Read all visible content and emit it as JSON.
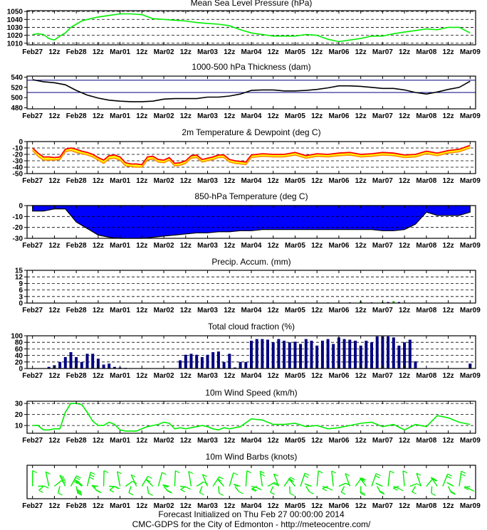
{
  "footer": {
    "line1": "Forecast Initialized on Thu Feb 27 00:00:00 2014",
    "line2": "CMC-GDPS for the City of Edmonton - http://meteocentre.com/"
  },
  "x_axis": {
    "labels": [
      "Feb27",
      "12z",
      "Feb28",
      "12z",
      "Mar01",
      "12z",
      "Mar02",
      "12z",
      "Mar03",
      "12z",
      "Mar04",
      "12z",
      "Mar05",
      "12z",
      "Mar06",
      "12z",
      "Mar07",
      "12z",
      "Mar08",
      "12z",
      "Mar09"
    ],
    "hours": [
      0,
      12,
      24,
      36,
      48,
      60,
      72,
      84,
      96,
      108,
      120,
      132,
      144,
      156,
      168,
      180,
      192,
      204,
      216,
      228,
      240
    ],
    "range_hours": [
      -3,
      243
    ]
  },
  "colors": {
    "green": "#00ee00",
    "black": "#000000",
    "navy": "#000080",
    "blue": "#0000ff",
    "red": "#ff0000",
    "yellow": "#ffff00",
    "orange": "#ff8c00"
  },
  "chart_data": [
    {
      "id": "mslp",
      "type": "line",
      "title": "Mean Sea Level Pressure (hPa)",
      "yticks": [
        1010,
        1020,
        1030,
        1040,
        1050
      ],
      "ylim": [
        1008,
        1051
      ],
      "grid": "dashed",
      "series": [
        {
          "color": "#00ee00",
          "x": [
            0,
            3,
            6,
            9,
            12,
            15,
            18,
            21,
            24,
            27,
            30,
            36,
            42,
            48,
            54,
            60,
            66,
            72,
            78,
            84,
            90,
            96,
            102,
            108,
            114,
            120,
            126,
            132,
            138,
            144,
            150,
            156,
            162,
            168,
            174,
            180,
            186,
            192,
            198,
            204,
            210,
            216,
            222,
            228,
            234,
            240
          ],
          "y": [
            1021,
            1022,
            1021,
            1016,
            1014,
            1019,
            1023,
            1030,
            1034,
            1038,
            1040,
            1043,
            1045,
            1047,
            1047,
            1046,
            1041,
            1040,
            1039,
            1038,
            1036,
            1035,
            1034,
            1032,
            1027,
            1023,
            1021,
            1019,
            1019,
            1019,
            1021,
            1020,
            1015,
            1012,
            1014,
            1016,
            1019,
            1019,
            1022,
            1024,
            1026,
            1028,
            1027,
            1030,
            1030,
            1023
          ]
        }
      ]
    },
    {
      "id": "thickness",
      "type": "line",
      "title": "1000-500 hPa Thickness (dam)",
      "yticks": [
        480,
        500,
        520,
        540
      ],
      "ylim": [
        478,
        542
      ],
      "hlines": [
        534,
        510
      ],
      "series": [
        {
          "color": "#000000",
          "x": [
            0,
            6,
            12,
            18,
            24,
            30,
            36,
            42,
            48,
            54,
            60,
            66,
            72,
            78,
            84,
            90,
            96,
            102,
            108,
            114,
            120,
            126,
            132,
            138,
            144,
            150,
            156,
            162,
            168,
            174,
            180,
            186,
            192,
            198,
            204,
            210,
            216,
            222,
            228,
            234,
            240
          ],
          "y": [
            535,
            531,
            529,
            525,
            514,
            505,
            499,
            495,
            493,
            492,
            492,
            493,
            497,
            498,
            498,
            498,
            501,
            501,
            503,
            507,
            514,
            515,
            515,
            513,
            513,
            514,
            516,
            519,
            523,
            523,
            522,
            520,
            518,
            518,
            515,
            510,
            507,
            511,
            516,
            520,
            532
          ]
        }
      ]
    },
    {
      "id": "temp",
      "type": "area",
      "title": "2m Temperature & Dewpoint (deg C)",
      "yticks": [
        -50,
        -40,
        -30,
        -20,
        -10,
        0
      ],
      "ylim": [
        -50,
        0
      ],
      "grid": "dashed",
      "x": [
        0,
        3,
        6,
        9,
        12,
        15,
        18,
        21,
        24,
        27,
        30,
        33,
        36,
        39,
        42,
        45,
        48,
        51,
        54,
        57,
        60,
        63,
        66,
        69,
        72,
        75,
        78,
        81,
        84,
        87,
        90,
        93,
        96,
        99,
        102,
        105,
        108,
        111,
        114,
        117,
        120,
        126,
        132,
        138,
        144,
        150,
        156,
        162,
        168,
        174,
        180,
        186,
        192,
        198,
        204,
        210,
        216,
        222,
        228,
        234,
        240
      ],
      "temperature": [
        -10,
        -18,
        -24,
        -24,
        -25,
        -24,
        -12,
        -10,
        -12,
        -15,
        -17,
        -20,
        -25,
        -29,
        -22,
        -21,
        -24,
        -33,
        -35,
        -35,
        -36,
        -24,
        -23,
        -28,
        -29,
        -25,
        -34,
        -33,
        -30,
        -22,
        -21,
        -28,
        -26,
        -24,
        -21,
        -21,
        -28,
        -30,
        -31,
        -32,
        -21,
        -19,
        -20,
        -20,
        -17,
        -22,
        -19,
        -20,
        -18,
        -17,
        -20,
        -19,
        -17,
        -18,
        -21,
        -20,
        -15,
        -18,
        -14,
        -12,
        -6
      ],
      "dewpoint": [
        -14,
        -23,
        -29,
        -29,
        -29,
        -28,
        -16,
        -14,
        -17,
        -19,
        -21,
        -24,
        -29,
        -34,
        -27,
        -26,
        -29,
        -38,
        -39,
        -40,
        -40,
        -29,
        -27,
        -32,
        -33,
        -29,
        -38,
        -37,
        -34,
        -26,
        -25,
        -32,
        -30,
        -28,
        -25,
        -25,
        -32,
        -34,
        -35,
        -36,
        -25,
        -23,
        -24,
        -24,
        -21,
        -26,
        -23,
        -24,
        -22,
        -21,
        -24,
        -23,
        -21,
        -22,
        -25,
        -24,
        -19,
        -22,
        -18,
        -16,
        -10
      ]
    },
    {
      "id": "t850",
      "type": "area",
      "title": "850-hPa Temperature (deg C)",
      "yticks": [
        -30,
        -20,
        -10,
        0
      ],
      "ylim": [
        -30,
        0
      ],
      "grid": "dashed",
      "fill": "#0000ff",
      "series": [
        {
          "x": [
            0,
            6,
            12,
            18,
            24,
            30,
            36,
            42,
            48,
            54,
            60,
            66,
            72,
            78,
            84,
            90,
            96,
            102,
            108,
            114,
            120,
            126,
            132,
            138,
            144,
            150,
            156,
            162,
            168,
            174,
            180,
            186,
            192,
            198,
            204,
            210,
            216,
            222,
            228,
            234,
            240
          ],
          "y": [
            -5,
            -5,
            -3,
            -3,
            -15,
            -21,
            -27,
            -29,
            -30,
            -30,
            -30,
            -29,
            -28,
            -27,
            -26,
            -25,
            -25,
            -24,
            -24,
            -23,
            -23,
            -22,
            -22,
            -22,
            -22,
            -22,
            -22,
            -22,
            -22,
            -22,
            -22,
            -22,
            -23,
            -23,
            -22,
            -17,
            -6,
            -9,
            -9,
            -9,
            -6
          ]
        }
      ]
    },
    {
      "id": "precip",
      "type": "bar",
      "title": "Precip. Accum. (mm)",
      "yticks": [
        0,
        3,
        6,
        9,
        12,
        15
      ],
      "ylim": [
        0,
        15
      ],
      "grid": "dashed",
      "colors": [
        "#000080",
        "#00aa00"
      ],
      "x": [
        126,
        132,
        150,
        162,
        174,
        180,
        186,
        192,
        195,
        198,
        201,
        204
      ],
      "values": [
        0.2,
        0.2,
        0.2,
        0.3,
        0.3,
        0.8,
        0.3,
        0.5,
        0.5,
        0.8,
        0.5,
        0.2
      ]
    },
    {
      "id": "cloud",
      "type": "bar",
      "title": "Total cloud fraction (%)",
      "yticks": [
        0,
        20,
        40,
        60,
        80,
        100
      ],
      "ylim": [
        0,
        100
      ],
      "grid": "dashed",
      "color": "#000080",
      "x": [
        9,
        12,
        15,
        18,
        21,
        24,
        27,
        30,
        33,
        36,
        39,
        42,
        45,
        48,
        51,
        54,
        81,
        84,
        87,
        90,
        93,
        96,
        99,
        102,
        105,
        108,
        111,
        114,
        117,
        120,
        123,
        126,
        129,
        132,
        135,
        138,
        141,
        144,
        147,
        150,
        153,
        156,
        159,
        162,
        165,
        168,
        171,
        174,
        177,
        180,
        183,
        186,
        189,
        192,
        195,
        198,
        201,
        204,
        207,
        210,
        213,
        216,
        240
      ],
      "values": [
        5,
        10,
        20,
        35,
        50,
        35,
        20,
        45,
        45,
        30,
        12,
        15,
        5,
        3,
        2,
        0,
        25,
        42,
        45,
        42,
        35,
        42,
        50,
        52,
        20,
        45,
        3,
        20,
        20,
        85,
        90,
        90,
        88,
        80,
        90,
        85,
        80,
        82,
        75,
        90,
        85,
        70,
        85,
        90,
        75,
        95,
        90,
        88,
        85,
        70,
        85,
        80,
        98,
        98,
        98,
        95,
        70,
        80,
        88,
        22,
        0,
        0,
        15
      ]
    },
    {
      "id": "wind",
      "type": "line",
      "title": "10m Wind Speed (km/h)",
      "yticks": [
        10,
        20,
        30
      ],
      "ylim": [
        3,
        32
      ],
      "grid": "dashed",
      "series": [
        {
          "color": "#00ee00",
          "x": [
            0,
            3,
            6,
            9,
            12,
            15,
            18,
            21,
            24,
            27,
            30,
            33,
            36,
            39,
            42,
            45,
            48,
            51,
            54,
            57,
            60,
            63,
            66,
            69,
            72,
            75,
            78,
            81,
            84,
            87,
            90,
            93,
            96,
            99,
            102,
            105,
            108,
            114,
            120,
            126,
            132,
            138,
            144,
            150,
            156,
            162,
            168,
            174,
            180,
            186,
            192,
            198,
            204,
            210,
            216,
            222,
            228,
            234,
            240
          ],
          "y": [
            10,
            10,
            6,
            6,
            7,
            7,
            22,
            30,
            30,
            29,
            22,
            14,
            10,
            10,
            13,
            11,
            6,
            5,
            5,
            5,
            7,
            9,
            10,
            11,
            13,
            12,
            7,
            8,
            7,
            8,
            9,
            10,
            9,
            7,
            6,
            8,
            7,
            9,
            16,
            15,
            11,
            11,
            12,
            9,
            10,
            7,
            8,
            10,
            12,
            13,
            9,
            11,
            6,
            11,
            9,
            19,
            17,
            13,
            11
          ]
        }
      ]
    },
    {
      "id": "barbs",
      "type": "line",
      "title": "10m Wind Barbs  (knots)",
      "color": "#00ee00"
    }
  ]
}
